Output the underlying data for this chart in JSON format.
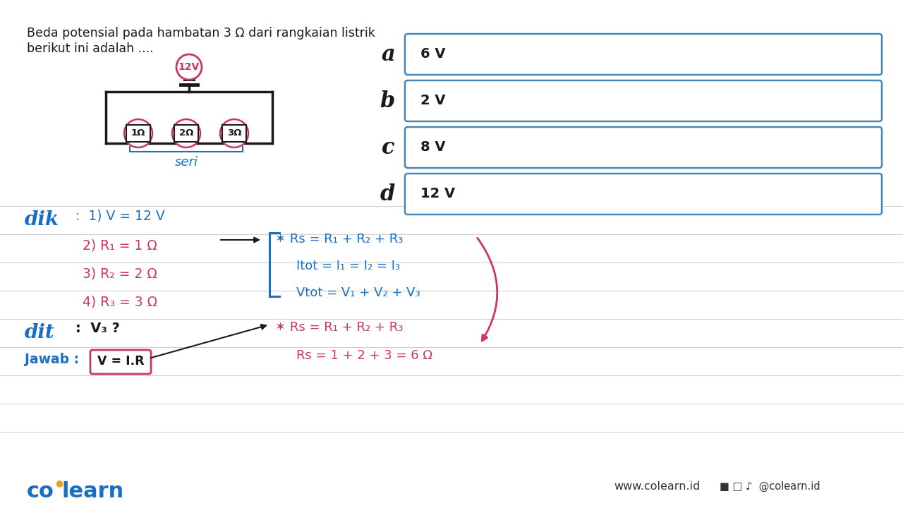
{
  "bg_color": "#f0f0f0",
  "title_line1": "Beda potensial pada hambatan 3 Ω dari rangkaian listrik",
  "title_line2": "berikut ini adalah ....",
  "options": [
    {
      "label": "a",
      "value": "6 V"
    },
    {
      "label": "b",
      "value": "2 V"
    },
    {
      "label": "c",
      "value": "8 V"
    },
    {
      "label": "d",
      "value": "12 V"
    }
  ],
  "voltage_label": "12V",
  "resistors": [
    "1Ω",
    "2Ω",
    "3Ω"
  ],
  "seri_label": "seri",
  "blue_color": "#1a6fc4",
  "pink_color": "#cc3366",
  "dark_color": "#1a1a1a",
  "line_color": "#c8c8c8",
  "box_border": "#4488bb",
  "footer_dot_color": "#e8a020",
  "dik_label": "dik",
  "dit_label": "dit",
  "jawab_label": "Jawab :",
  "colearn_text": "co learn",
  "website_text": "www.colearn.id",
  "social_text": "@colearn.id"
}
